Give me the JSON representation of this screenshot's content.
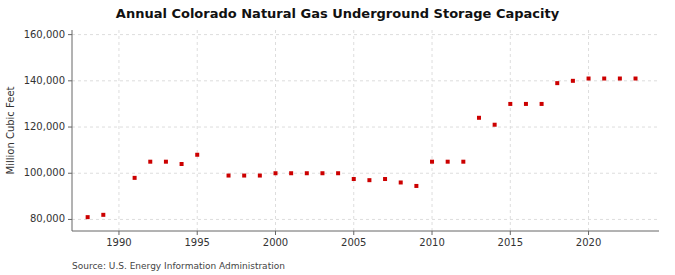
{
  "chart_data": {
    "type": "scatter",
    "title": "Annual Colorado Natural Gas Underground Storage Capacity",
    "ylabel": "Million Cubic Feet",
    "source": "Source: U.S. Energy Information Administration",
    "color": "#cc0000",
    "marker": "square",
    "grid": true,
    "xlim": [
      1987.0,
      2024.5
    ],
    "xticks": [
      1990,
      1995,
      2000,
      2005,
      2010,
      2015,
      2020
    ],
    "ylim": [
      75000,
      162000
    ],
    "yticks": [
      {
        "value": 80000,
        "label": "80,000"
      },
      {
        "value": 100000,
        "label": "100,000"
      },
      {
        "value": 120000,
        "label": "120,000"
      },
      {
        "value": 140000,
        "label": "140,000"
      },
      {
        "value": 160000,
        "label": "160,000"
      }
    ],
    "x": [
      1988,
      1989,
      1991,
      1992,
      1993,
      1994,
      1995,
      1997,
      1998,
      1999,
      2000,
      2001,
      2002,
      2003,
      2004,
      2005,
      2006,
      2007,
      2008,
      2009,
      2010,
      2011,
      2012,
      2013,
      2014,
      2015,
      2016,
      2017,
      2018,
      2019,
      2020,
      2021,
      2022,
      2023
    ],
    "values": [
      81000,
      82000,
      98000,
      105000,
      105000,
      104000,
      108000,
      99000,
      99000,
      99000,
      100000,
      100000,
      100000,
      100000,
      100000,
      97500,
      97000,
      97500,
      96000,
      94500,
      105000,
      105000,
      105000,
      124000,
      121000,
      130000,
      130000,
      130000,
      139000,
      140000,
      141000,
      141000,
      141000,
      141000
    ]
  }
}
